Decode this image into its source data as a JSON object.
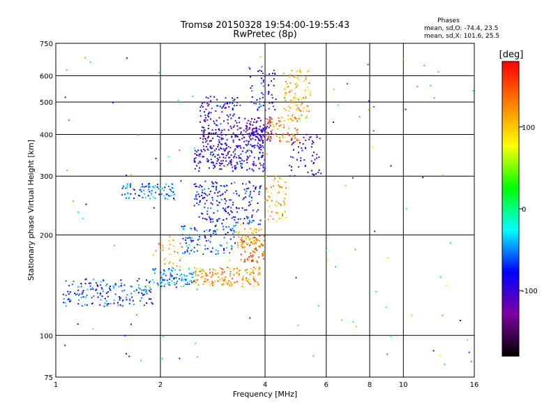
{
  "chart_data": {
    "type": "scatter",
    "title": "Tromsø 20150328 19:54:00-19:55:43",
    "subtitle": "RwPretec (8p)",
    "xlabel": "Frequency [MHz]",
    "ylabel": "Stationary phase Virtual Height [km]",
    "x_scale": "log",
    "y_scale": "log",
    "xlim": [
      1,
      16
    ],
    "ylim": [
      75,
      750
    ],
    "x_ticks": [
      1,
      2,
      4,
      6,
      8,
      10,
      16
    ],
    "y_ticks": [
      75,
      100,
      200,
      300,
      400,
      500,
      600,
      750
    ],
    "grid": true,
    "stats": {
      "title": "Phases",
      "line_o": "mean, sd,O: -74.4, 23.5",
      "line_x": "mean, sd,X: 101.6, 25.5"
    },
    "colorbar": {
      "label": "[deg]",
      "range": [
        -180,
        180
      ],
      "ticks": [
        100,
        0,
        -100
      ],
      "stops": [
        "#000000",
        "#8000a0",
        "#0000ff",
        "#00ffff",
        "#00ff00",
        "#ffff00",
        "#ff8000",
        "#ff0000"
      ]
    },
    "series": [
      {
        "clusters": [
          {
            "f0": 1.05,
            "f1": 1.9,
            "h0": 122,
            "h1": 148,
            "phase": -65,
            "n": 170
          },
          {
            "f0": 1.9,
            "f1": 2.5,
            "h0": 140,
            "h1": 160,
            "phase": -50,
            "n": 90
          },
          {
            "f0": 2.5,
            "f1": 3.9,
            "h0": 140,
            "h1": 160,
            "phase": 120,
            "n": 150
          },
          {
            "f0": 3.4,
            "f1": 4.0,
            "h0": 165,
            "h1": 200,
            "phase": 145,
            "n": 70
          },
          {
            "f0": 2.3,
            "f1": 3.3,
            "h0": 175,
            "h1": 215,
            "phase": -60,
            "n": 110
          },
          {
            "f0": 3.3,
            "f1": 3.9,
            "h0": 180,
            "h1": 215,
            "phase": 100,
            "n": 50
          },
          {
            "f0": 2.5,
            "f1": 3.9,
            "h0": 215,
            "h1": 290,
            "phase": -75,
            "n": 200
          },
          {
            "f0": 4.0,
            "f1": 4.6,
            "h0": 220,
            "h1": 300,
            "phase": 110,
            "n": 60
          },
          {
            "f0": 1.55,
            "f1": 2.2,
            "h0": 255,
            "h1": 285,
            "phase": -55,
            "n": 90
          },
          {
            "f0": 2.5,
            "f1": 4.0,
            "h0": 310,
            "h1": 360,
            "phase": -90,
            "n": 160
          },
          {
            "f0": 2.6,
            "f1": 4.0,
            "h0": 360,
            "h1": 420,
            "phase": -95,
            "n": 180
          },
          {
            "f0": 3.5,
            "f1": 4.2,
            "h0": 380,
            "h1": 450,
            "phase": -110,
            "n": 80
          },
          {
            "f0": 2.6,
            "f1": 3.4,
            "h0": 420,
            "h1": 520,
            "phase": -85,
            "n": 90
          },
          {
            "f0": 4.0,
            "f1": 5.0,
            "h0": 380,
            "h1": 450,
            "phase": 130,
            "n": 70
          },
          {
            "f0": 4.5,
            "f1": 5.4,
            "h0": 440,
            "h1": 630,
            "phase": 110,
            "n": 100
          },
          {
            "f0": 4.7,
            "f1": 5.8,
            "h0": 300,
            "h1": 400,
            "phase": -95,
            "n": 60
          },
          {
            "f0": 3.6,
            "f1": 4.3,
            "h0": 470,
            "h1": 640,
            "phase": -80,
            "n": 60
          },
          {
            "f0": 1.9,
            "f1": 2.3,
            "h0": 160,
            "h1": 200,
            "phase": 115,
            "n": 30
          },
          {
            "f0": 1.05,
            "f1": 16,
            "h0": 80,
            "h1": 700,
            "phase": 0,
            "n": 110
          }
        ]
      }
    ]
  }
}
